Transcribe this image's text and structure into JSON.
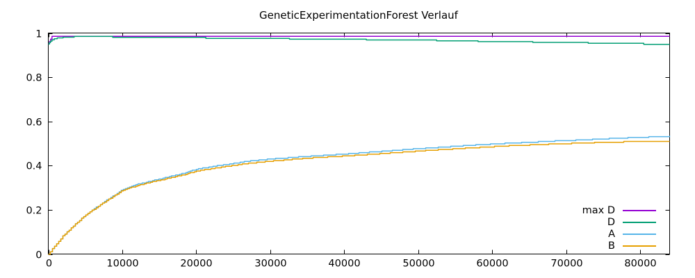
{
  "chart_data": {
    "type": "line",
    "title": "GeneticExperimentationForest Verlauf",
    "xlabel": "",
    "ylabel": "",
    "xlim": [
      0,
      84000
    ],
    "ylim": [
      0,
      1
    ],
    "x_ticks": [
      0,
      10000,
      20000,
      30000,
      40000,
      50000,
      60000,
      70000,
      80000
    ],
    "x_tick_labels": [
      "0",
      "10000",
      "20000",
      "30000",
      "40000",
      "50000",
      "60000",
      "70000",
      "80000"
    ],
    "y_ticks": [
      0,
      0.2,
      0.4,
      0.6,
      0.8,
      1
    ],
    "y_tick_labels": [
      "0",
      "0.2",
      "0.4",
      "0.6",
      "0.8",
      "1"
    ],
    "grid": false,
    "legend_position": "inside-bottom-right",
    "background_color": "#ffffff",
    "border_color": "#000000",
    "text_color": "#000000",
    "series": [
      {
        "name": "max D",
        "color": "#9400D3",
        "render": "step",
        "points": [
          [
            0,
            0.952
          ],
          [
            150,
            0.962
          ],
          [
            300,
            0.972
          ],
          [
            500,
            0.985
          ],
          [
            84000,
            0.985
          ]
        ]
      },
      {
        "name": "D",
        "color": "#009E73",
        "render": "step",
        "points": [
          [
            0,
            0.95
          ],
          [
            150,
            0.957
          ],
          [
            300,
            0.963
          ],
          [
            500,
            0.969
          ],
          [
            800,
            0.974
          ],
          [
            1200,
            0.978
          ],
          [
            2000,
            0.981
          ],
          [
            3500,
            0.9845
          ],
          [
            8700,
            0.9805
          ],
          [
            21300,
            0.9755
          ],
          [
            32600,
            0.972
          ],
          [
            43000,
            0.9685
          ],
          [
            52500,
            0.9645
          ],
          [
            58100,
            0.961
          ],
          [
            65500,
            0.9575
          ],
          [
            73000,
            0.9535
          ],
          [
            80500,
            0.9485
          ],
          [
            84000,
            0.9485
          ]
        ]
      },
      {
        "name": "A",
        "color": "#56B4E9",
        "render": "smooth-step",
        "points": [
          [
            0,
            0
          ],
          [
            1000,
            0.042
          ],
          [
            2000,
            0.082
          ],
          [
            3000,
            0.115
          ],
          [
            4000,
            0.146
          ],
          [
            5000,
            0.175
          ],
          [
            6000,
            0.2
          ],
          [
            7000,
            0.223
          ],
          [
            8000,
            0.246
          ],
          [
            9000,
            0.268
          ],
          [
            10000,
            0.29
          ],
          [
            12000,
            0.315
          ],
          [
            14000,
            0.331
          ],
          [
            16000,
            0.347
          ],
          [
            18000,
            0.363
          ],
          [
            20000,
            0.383
          ],
          [
            22000,
            0.395
          ],
          [
            24000,
            0.405
          ],
          [
            27000,
            0.42
          ],
          [
            30000,
            0.43
          ],
          [
            33000,
            0.437
          ],
          [
            36000,
            0.444
          ],
          [
            40000,
            0.452
          ],
          [
            44000,
            0.462
          ],
          [
            48000,
            0.472
          ],
          [
            52000,
            0.481
          ],
          [
            57000,
            0.492
          ],
          [
            62000,
            0.501
          ],
          [
            67000,
            0.509
          ],
          [
            72000,
            0.516
          ],
          [
            77000,
            0.524
          ],
          [
            81000,
            0.529
          ],
          [
            84000,
            0.533
          ]
        ]
      },
      {
        "name": "B",
        "color": "#E69F00",
        "render": "smooth-step",
        "points": [
          [
            0,
            0
          ],
          [
            1000,
            0.042
          ],
          [
            2000,
            0.082
          ],
          [
            3000,
            0.115
          ],
          [
            4000,
            0.146
          ],
          [
            5000,
            0.175
          ],
          [
            6000,
            0.199
          ],
          [
            7000,
            0.222
          ],
          [
            8000,
            0.244
          ],
          [
            9000,
            0.266
          ],
          [
            10000,
            0.287
          ],
          [
            12000,
            0.31
          ],
          [
            14000,
            0.326
          ],
          [
            16000,
            0.341
          ],
          [
            18000,
            0.356
          ],
          [
            20000,
            0.375
          ],
          [
            22000,
            0.386
          ],
          [
            24000,
            0.396
          ],
          [
            27000,
            0.41
          ],
          [
            30000,
            0.42
          ],
          [
            33000,
            0.428
          ],
          [
            36000,
            0.436
          ],
          [
            40000,
            0.443
          ],
          [
            44000,
            0.452
          ],
          [
            48000,
            0.461
          ],
          [
            52000,
            0.47
          ],
          [
            57000,
            0.48
          ],
          [
            62000,
            0.489
          ],
          [
            67000,
            0.496
          ],
          [
            72000,
            0.502
          ],
          [
            77000,
            0.507
          ],
          [
            81000,
            0.51
          ],
          [
            84000,
            0.511
          ]
        ]
      }
    ]
  }
}
